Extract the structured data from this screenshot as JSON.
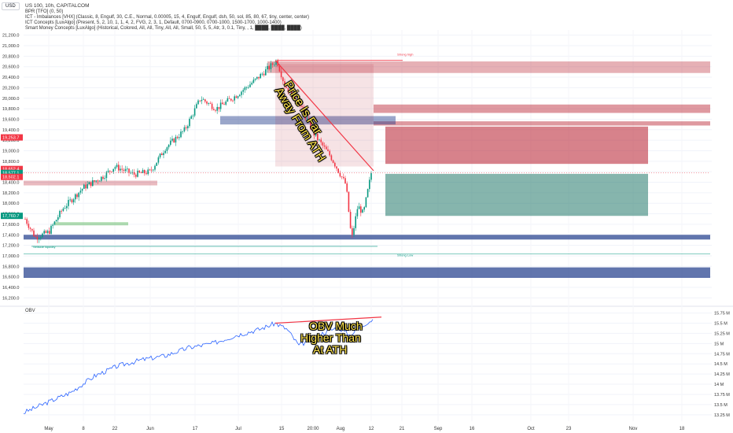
{
  "header": {
    "currency": "USD",
    "symbol_line": "US 100, 10h, CAPITALCOM",
    "indicators": [
      "BPR [TFO] (0, 50)",
      "ICT - Imbalances [VHX] (Classic, 8, Engulf, 30, C.E., Normal, 0.00005, 15, 4, Engulf, Engulf, dsh, 50, sol, 85, 80, 67, tiny, center, center)",
      "ICT Concepts [LuxAlgo] (Present, 5, 2, 10, 1, 1, 4, 2, FVG, 2, 3, 1, Default, 0700-0900, 0700-1000, 1500-1700, 1000-1400)",
      "Smart Money Concepts [LuxAlgo] (Historical, Colored, All, All, Tiny, All, All, Small, 50, 5, 5, Atr, 3, 0.1, Tiny, , 1, ████, ████, ████)"
    ],
    "obv_label": "OBV"
  },
  "annotations": {
    "price": [
      "Price Is Far",
      "Away From ATH"
    ],
    "obv": [
      "OBV Much",
      "Higher Than",
      "At ATH"
    ]
  },
  "colors": {
    "up": "#089981",
    "down": "#f23645",
    "obv_line": "#2962ff",
    "trend_line": "#f23645",
    "annotation": "#ffe44d",
    "zone_blue": "#1e3a8a",
    "zone_red": "#b71c2c",
    "zone_green": "#0e6b5c"
  },
  "chart_data": [
    {
      "type": "candlestick",
      "title": "US 100, 10h, CAPITALCOM",
      "x_ticks": [
        "May",
        "8",
        "22",
        "Jun",
        "17",
        "Jul",
        "15",
        "20:00",
        "Aug",
        "12",
        "21",
        "Sep",
        "16",
        "Oct",
        "23",
        "Nov",
        "18"
      ],
      "y_ticks": [
        "21,200.0",
        "21,000.0",
        "20,800.0",
        "20,600.0",
        "20,400.0",
        "20,200.0",
        "20,000.0",
        "19,800.0",
        "19,600.0",
        "19,400.0",
        "19,200.0",
        "19,000.0",
        "18,800.0",
        "18,600.0",
        "18,400.0",
        "18,200.0",
        "18,000.0",
        "17,800.0",
        "17,600.0",
        "17,400.0",
        "17,200.0",
        "17,000.0",
        "16,800.0",
        "16,600.0",
        "16,400.0",
        "16,200.0"
      ],
      "ylim": [
        16100,
        21300
      ],
      "price_labels": [
        {
          "text": "19,253.7",
          "value": 19253.7,
          "color": "#f23645"
        },
        {
          "text": "18,652.4",
          "value": 18652.4,
          "color": "#f23645"
        },
        {
          "text": "18,577.1",
          "value": 18577.1,
          "color": "#089981"
        },
        {
          "text": "18,502.1",
          "value": 18502.1,
          "color": "#f23645"
        },
        {
          "text": "17,760.7",
          "value": 17760.7,
          "color": "#089981"
        }
      ],
      "levels": [
        {
          "text": "Sellside liquidity",
          "value": 17200
        },
        {
          "text": "Strong high",
          "value": 20780
        },
        {
          "text": "Strong Low",
          "value": 17160
        }
      ],
      "ath": 20720,
      "aug_low": 17300,
      "last": 18577
    },
    {
      "type": "line",
      "name": "OBV",
      "y_ticks": [
        "15.75 M",
        "15.5 M",
        "15.25 M",
        "15 M",
        "14.75 M",
        "14.5 M",
        "14.25 M",
        "14 M",
        "13.75 M",
        "13.5 M",
        "13.25 M"
      ],
      "ylim": [
        13.15,
        15.8
      ]
    }
  ]
}
